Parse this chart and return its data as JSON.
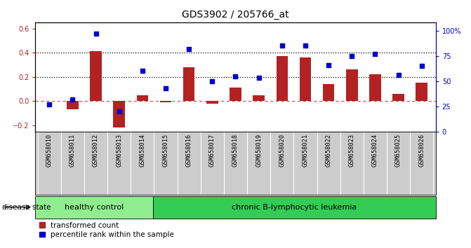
{
  "title": "GDS3902 / 205766_at",
  "samples": [
    "GSM658010",
    "GSM658011",
    "GSM658012",
    "GSM658013",
    "GSM658014",
    "GSM658015",
    "GSM658016",
    "GSM658017",
    "GSM658018",
    "GSM658019",
    "GSM658020",
    "GSM658021",
    "GSM658022",
    "GSM658023",
    "GSM658024",
    "GSM658025",
    "GSM658026"
  ],
  "bar_values": [
    0.0,
    -0.07,
    0.41,
    -0.22,
    0.05,
    -0.01,
    0.28,
    -0.02,
    0.11,
    0.05,
    0.37,
    0.36,
    0.14,
    0.26,
    0.22,
    0.06,
    0.15
  ],
  "dot_values": [
    27,
    32,
    97,
    20,
    60,
    43,
    82,
    50,
    55,
    53,
    85,
    85,
    66,
    75,
    77,
    56,
    65
  ],
  "bar_color": "#b22222",
  "dot_color": "#0000cc",
  "ylim_left": [
    -0.25,
    0.65
  ],
  "ylim_right": [
    0,
    108.33
  ],
  "yticks_left": [
    -0.2,
    0.0,
    0.2,
    0.4,
    0.6
  ],
  "yticks_right": [
    0,
    25,
    50,
    75,
    100
  ],
  "ytick_labels_right": [
    "0",
    "25",
    "50",
    "75",
    "100%"
  ],
  "hlines": [
    0.2,
    0.4
  ],
  "healthy_control_count": 5,
  "healthy_label": "healthy control",
  "leukemia_label": "chronic B-lymphocytic leukemia",
  "disease_state_label": "disease state",
  "legend_bar_label": "transformed count",
  "legend_dot_label": "percentile rank within the sample",
  "healthy_color": "#90ee90",
  "leukemia_color": "#33cc55",
  "title_fontsize": 10,
  "tick_fontsize": 7,
  "label_fontsize": 7,
  "bar_width": 0.5
}
